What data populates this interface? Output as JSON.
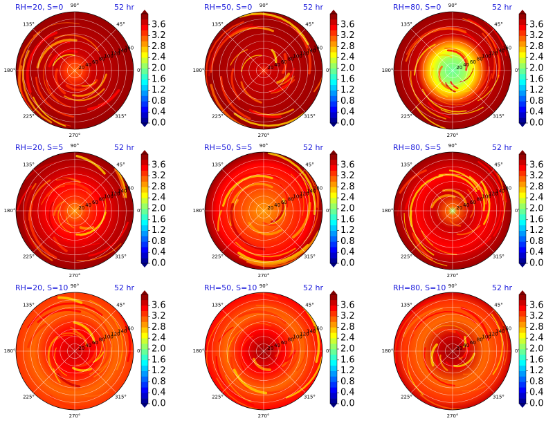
{
  "chart_data": {
    "type": "polar-contour",
    "layout": "3x3 grid",
    "colormap": "jet",
    "colorbar_ticks": [
      "0.0",
      "0.4",
      "0.8",
      "1.2",
      "1.6",
      "2.0",
      "2.4",
      "2.8",
      "3.2",
      "3.6"
    ],
    "colorbar_range": [
      0.0,
      4.0
    ],
    "colorbar_levels": 20,
    "angle_labels": [
      "90°",
      "45°",
      "0°",
      "315°",
      "270°",
      "225°",
      "180°",
      "135°"
    ],
    "radial_ticks": [
      "20",
      "40",
      "60",
      "80",
      "100",
      "120",
      "140",
      "160"
    ],
    "panels": [
      {
        "title": "RH=20, S=0",
        "time": "52 hr",
        "field": {
          "center": 3.0,
          "rings": [
            {
              "r": 0.0,
              "v": 3.0
            },
            {
              "r": 0.15,
              "v": 3.3
            },
            {
              "r": 0.3,
              "v": 3.6
            },
            {
              "r": 1.0,
              "v": 3.8
            }
          ]
        }
      },
      {
        "title": "RH=50, S=0",
        "time": "52 hr",
        "field": {
          "center": 3.2,
          "rings": [
            {
              "r": 0.0,
              "v": 3.2
            },
            {
              "r": 0.1,
              "v": 3.6
            },
            {
              "r": 1.0,
              "v": 3.9
            }
          ]
        }
      },
      {
        "title": "RH=80, S=0",
        "time": "52 hr",
        "field": {
          "center": 1.9,
          "rings": [
            {
              "r": 0.0,
              "v": 1.9
            },
            {
              "r": 0.2,
              "v": 2.1
            },
            {
              "r": 0.35,
              "v": 2.5
            },
            {
              "r": 0.5,
              "v": 3.0
            },
            {
              "r": 0.6,
              "v": 3.6
            },
            {
              "r": 1.0,
              "v": 3.9
            }
          ]
        }
      },
      {
        "title": "RH=20, S=5",
        "time": "52 hr",
        "field": {
          "center": 2.9,
          "rings": [
            {
              "r": 0.0,
              "v": 2.9
            },
            {
              "r": 0.2,
              "v": 3.2
            },
            {
              "r": 0.45,
              "v": 3.5
            },
            {
              "r": 0.7,
              "v": 3.6
            },
            {
              "r": 1.0,
              "v": 3.8
            }
          ]
        }
      },
      {
        "title": "RH=50, S=5",
        "time": "52 hr",
        "field": {
          "center": 2.9,
          "rings": [
            {
              "r": 0.0,
              "v": 2.9
            },
            {
              "r": 0.25,
              "v": 3.0
            },
            {
              "r": 0.5,
              "v": 3.3
            },
            {
              "r": 0.8,
              "v": 3.5
            },
            {
              "r": 1.0,
              "v": 3.8
            }
          ]
        }
      },
      {
        "title": "RH=80, S=5",
        "time": "52 hr",
        "field": {
          "center": 2.1,
          "rings": [
            {
              "r": 0.0,
              "v": 2.1
            },
            {
              "r": 0.08,
              "v": 3.1
            },
            {
              "r": 0.3,
              "v": 3.6
            },
            {
              "r": 0.6,
              "v": 3.4
            },
            {
              "r": 1.0,
              "v": 3.8
            }
          ]
        }
      },
      {
        "title": "RH=20, S=10",
        "time": "52 hr",
        "field": {
          "center": 3.7,
          "rings": [
            {
              "r": 0.0,
              "v": 3.7
            },
            {
              "r": 0.35,
              "v": 3.5
            },
            {
              "r": 0.7,
              "v": 3.0
            },
            {
              "r": 1.0,
              "v": 3.2
            }
          ]
        }
      },
      {
        "title": "RH=50, S=10",
        "time": "52 hr",
        "field": {
          "center": 3.8,
          "rings": [
            {
              "r": 0.0,
              "v": 3.8
            },
            {
              "r": 0.35,
              "v": 3.4
            },
            {
              "r": 0.65,
              "v": 3.0
            },
            {
              "r": 1.0,
              "v": 3.4
            }
          ]
        }
      },
      {
        "title": "RH=80, S=10",
        "time": "52 hr",
        "field": {
          "center": 3.8,
          "rings": [
            {
              "r": 0.0,
              "v": 3.8
            },
            {
              "r": 0.25,
              "v": 3.6
            },
            {
              "r": 0.55,
              "v": 3.1
            },
            {
              "r": 0.85,
              "v": 3.3
            },
            {
              "r": 1.0,
              "v": 3.6
            }
          ]
        }
      }
    ]
  }
}
